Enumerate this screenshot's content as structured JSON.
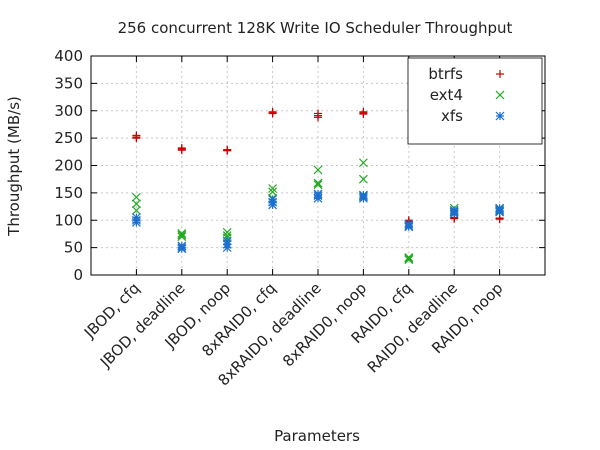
{
  "chart_data": {
    "type": "scatter",
    "title": "256 concurrent 128K Write IO Scheduler Throughput",
    "xlabel": "Parameters",
    "ylabel": "Throughput (MB/s)",
    "ylim": [
      0,
      400
    ],
    "yticks": [
      0,
      50,
      100,
      150,
      200,
      250,
      300,
      350,
      400
    ],
    "categories": [
      "JBOD, cfq",
      "JBOD, deadline",
      "JBOD, noop",
      "8xRAID0, cfq",
      "8xRAID0, deadline",
      "8xRAID0, noop",
      "RAID0, cfq",
      "RAID0, deadline",
      "RAID0, noop"
    ],
    "grid": true,
    "legend_position": "top-right",
    "series": [
      {
        "name": "btrfs",
        "marker": "plus",
        "color": "#cc0000",
        "points": [
          [
            0,
            255
          ],
          [
            0,
            250
          ],
          [
            0,
            252
          ],
          [
            1,
            232
          ],
          [
            1,
            230
          ],
          [
            1,
            228
          ],
          [
            2,
            229
          ],
          [
            2,
            227
          ],
          [
            2,
            228
          ],
          [
            3,
            298
          ],
          [
            3,
            295
          ],
          [
            3,
            296
          ],
          [
            4,
            295
          ],
          [
            4,
            288
          ],
          [
            4,
            291
          ],
          [
            5,
            298
          ],
          [
            5,
            294
          ],
          [
            5,
            296
          ],
          [
            6,
            100
          ],
          [
            6,
            98
          ],
          [
            6,
            97
          ],
          [
            7,
            105
          ],
          [
            7,
            103
          ],
          [
            7,
            104
          ],
          [
            8,
            103
          ],
          [
            8,
            102
          ],
          [
            8,
            104
          ]
        ]
      },
      {
        "name": "ext4",
        "marker": "cross",
        "color": "#22aa22",
        "points": [
          [
            0,
            142
          ],
          [
            0,
            130
          ],
          [
            0,
            118
          ],
          [
            1,
            76
          ],
          [
            1,
            73
          ],
          [
            1,
            70
          ],
          [
            2,
            78
          ],
          [
            2,
            72
          ],
          [
            2,
            68
          ],
          [
            3,
            158
          ],
          [
            3,
            152
          ],
          [
            3,
            140
          ],
          [
            4,
            192
          ],
          [
            4,
            168
          ],
          [
            4,
            165
          ],
          [
            5,
            205
          ],
          [
            5,
            175
          ],
          [
            5,
            145
          ],
          [
            6,
            32
          ],
          [
            6,
            30
          ],
          [
            6,
            28
          ],
          [
            7,
            122
          ],
          [
            7,
            118
          ],
          [
            7,
            115
          ],
          [
            8,
            120
          ],
          [
            8,
            118
          ],
          [
            8,
            116
          ]
        ]
      },
      {
        "name": "xfs",
        "marker": "star",
        "color": "#1a6fd0",
        "points": [
          [
            0,
            105
          ],
          [
            0,
            100
          ],
          [
            0,
            96
          ],
          [
            1,
            53
          ],
          [
            1,
            50
          ],
          [
            1,
            48
          ],
          [
            2,
            62
          ],
          [
            2,
            56
          ],
          [
            2,
            50
          ],
          [
            3,
            138
          ],
          [
            3,
            133
          ],
          [
            3,
            128
          ],
          [
            4,
            148
          ],
          [
            4,
            145
          ],
          [
            4,
            140
          ],
          [
            5,
            146
          ],
          [
            5,
            143
          ],
          [
            5,
            140
          ],
          [
            6,
            93
          ],
          [
            6,
            90
          ],
          [
            6,
            88
          ],
          [
            7,
            118
          ],
          [
            7,
            115
          ],
          [
            7,
            112
          ],
          [
            8,
            122
          ],
          [
            8,
            118
          ],
          [
            8,
            115
          ]
        ]
      }
    ]
  }
}
